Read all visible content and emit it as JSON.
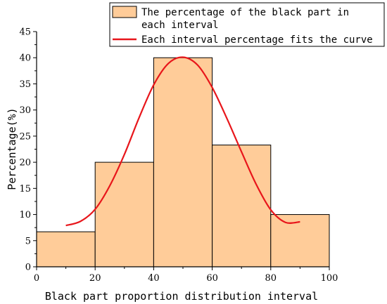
{
  "chart_data": {
    "type": "bar",
    "bins": [
      {
        "from": 0,
        "to": 20,
        "value": 6.7
      },
      {
        "from": 20,
        "to": 40,
        "value": 20.0
      },
      {
        "from": 40,
        "to": 60,
        "value": 40.0
      },
      {
        "from": 60,
        "to": 80,
        "value": 23.3
      },
      {
        "from": 80,
        "to": 100,
        "value": 10.0
      }
    ],
    "fit_curve": {
      "x": [
        10,
        15,
        20,
        25,
        30,
        35,
        40,
        45,
        50,
        55,
        60,
        65,
        70,
        75,
        80,
        85,
        90
      ],
      "y": [
        7.9,
        8.7,
        11.0,
        15.5,
        21.5,
        28.5,
        34.8,
        38.9,
        40.1,
        38.6,
        34.3,
        28.4,
        22.0,
        15.8,
        10.9,
        8.5,
        8.6
      ]
    },
    "xlabel": "Black part proportion distribution interval",
    "ylabel": "Percentage(%)",
    "xlim": [
      0,
      100
    ],
    "ylim": [
      0,
      45
    ],
    "xticks": [
      0,
      20,
      40,
      60,
      80,
      100
    ],
    "yticks": [
      0,
      5,
      10,
      15,
      20,
      25,
      30,
      35,
      40,
      45
    ],
    "grid": false,
    "legend_placement": "top-right",
    "legend": [
      {
        "label_line1": "The percentage of the black part in",
        "label_line2": "each interval",
        "kind": "bar"
      },
      {
        "label_line1": "Each interval percentage fits the curve",
        "kind": "line"
      }
    ],
    "colors": {
      "bar_fill": "#FFCC99",
      "bar_edge": "#000000",
      "curve": "#E8161B",
      "axis": "#000000"
    }
  }
}
